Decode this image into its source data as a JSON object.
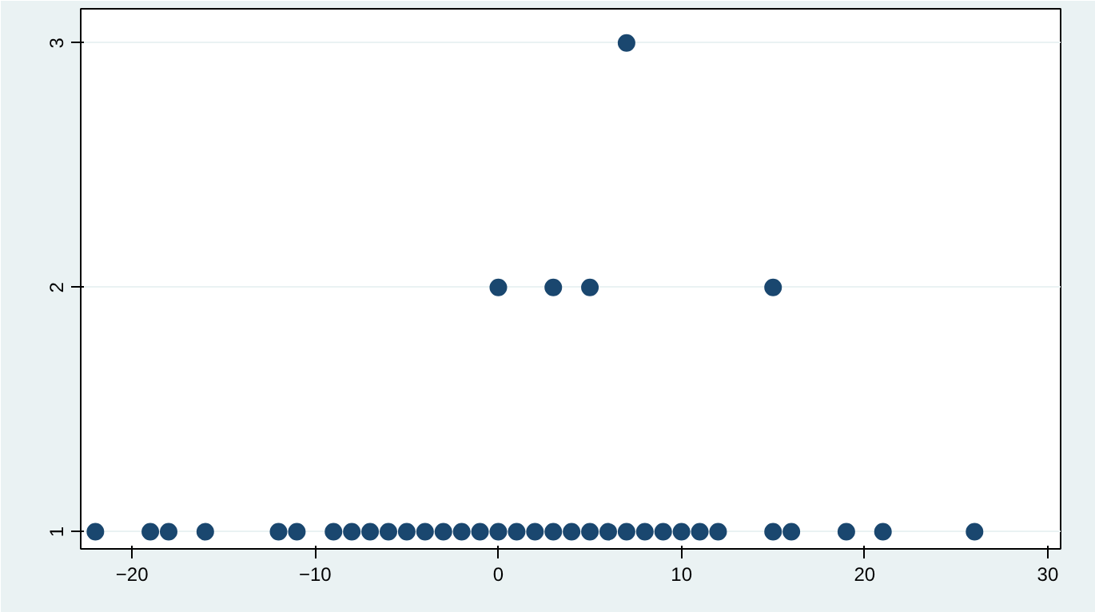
{
  "chart_data": {
    "type": "scatter",
    "x": [
      -22,
      -19,
      -18,
      -16,
      -12,
      -11,
      -9,
      -8,
      -7,
      -6,
      -5,
      -4,
      -3,
      -2,
      -1,
      0,
      1,
      2,
      3,
      4,
      5,
      6,
      7,
      8,
      9,
      10,
      11,
      12,
      15,
      16,
      19,
      21,
      26,
      0,
      3,
      5,
      15,
      7
    ],
    "values": [
      1,
      1,
      1,
      1,
      1,
      1,
      1,
      1,
      1,
      1,
      1,
      1,
      1,
      1,
      1,
      1,
      1,
      1,
      1,
      1,
      1,
      1,
      1,
      1,
      1,
      1,
      1,
      1,
      1,
      1,
      1,
      1,
      1,
      2,
      2,
      2,
      2,
      3
    ],
    "color": "#1a476f",
    "marker": "circle",
    "xlim": [
      -22.8,
      30.7
    ],
    "ylim": [
      0.93,
      3.14
    ],
    "xticks": [
      -20,
      -10,
      0,
      10,
      20,
      30
    ],
    "yticks": [
      1,
      2,
      3
    ],
    "grid": "y"
  }
}
